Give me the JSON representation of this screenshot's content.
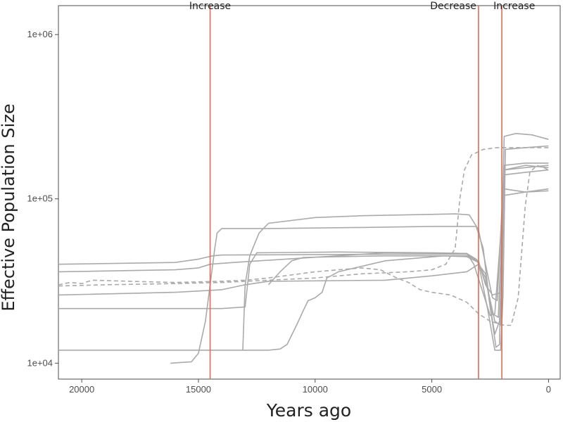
{
  "chart_data": {
    "type": "line",
    "title": "",
    "xlabel": "Years ago",
    "ylabel": "Effective Population Size",
    "x_reversed": true,
    "y_scale": "log10",
    "xlim": [
      21000,
      -500
    ],
    "ylim": [
      8000,
      1500000
    ],
    "grid": false,
    "xticks": [
      {
        "value": 20000,
        "label": "20000"
      },
      {
        "value": 15000,
        "label": "15000"
      },
      {
        "value": 10000,
        "label": "10000"
      },
      {
        "value": 5000,
        "label": "5000"
      },
      {
        "value": 0,
        "label": "0"
      }
    ],
    "yticks": [
      {
        "value": 10000,
        "label": "1e+04"
      },
      {
        "value": 100000,
        "label": "1e+05"
      },
      {
        "value": 1000000,
        "label": "1e+06"
      }
    ],
    "events": [
      {
        "x": 14500,
        "label": "Increase"
      },
      {
        "x": 3000,
        "label": "Decrease"
      },
      {
        "x": 2000,
        "label": "Increase"
      }
    ],
    "colors": {
      "series": "#aaaaaa",
      "event_line": "#e06a55",
      "axis": "#4d4d4d"
    },
    "series": [
      {
        "dashed": false,
        "points": [
          [
            21000,
            40000
          ],
          [
            16000,
            41000
          ],
          [
            15000,
            43000
          ],
          [
            14400,
            45000
          ],
          [
            14000,
            45500
          ],
          [
            7000,
            46000
          ],
          [
            3500,
            46000
          ],
          [
            3000,
            41000
          ],
          [
            2600,
            21000
          ],
          [
            2300,
            12000
          ],
          [
            2050,
            12000
          ],
          [
            1950,
            26000
          ],
          [
            1850,
            200000
          ],
          [
            1000,
            205000
          ],
          [
            0,
            210000
          ]
        ]
      },
      {
        "dashed": false,
        "points": [
          [
            21000,
            36000
          ],
          [
            16000,
            37000
          ],
          [
            15000,
            38000
          ],
          [
            14500,
            40000
          ],
          [
            13500,
            41000
          ],
          [
            7000,
            47000
          ],
          [
            3500,
            46500
          ],
          [
            3100,
            43000
          ],
          [
            2700,
            33000
          ],
          [
            2400,
            20000
          ],
          [
            2150,
            19000
          ],
          [
            1900,
            150000
          ],
          [
            1000,
            155000
          ],
          [
            0,
            160000
          ]
        ]
      },
      {
        "dashed": false,
        "points": [
          [
            21000,
            26000
          ],
          [
            16000,
            27000
          ],
          [
            14000,
            28000
          ],
          [
            13000,
            30000
          ],
          [
            12000,
            31500
          ],
          [
            7000,
            32000
          ],
          [
            5000,
            34000
          ],
          [
            3500,
            36000
          ],
          [
            3000,
            40000
          ],
          [
            2700,
            35000
          ],
          [
            2500,
            22000
          ],
          [
            2250,
            12500
          ],
          [
            2100,
            13000
          ],
          [
            1900,
            240000
          ],
          [
            1400,
            250000
          ],
          [
            700,
            245000
          ],
          [
            0,
            230000
          ]
        ]
      },
      {
        "dashed": false,
        "points": [
          [
            21000,
            21500
          ],
          [
            16000,
            21500
          ],
          [
            14000,
            21500
          ],
          [
            13000,
            22000
          ],
          [
            12800,
            40000
          ],
          [
            12500,
            47000
          ],
          [
            9000,
            47500
          ],
          [
            5000,
            47000
          ],
          [
            3500,
            46500
          ],
          [
            3200,
            40000
          ],
          [
            2700,
            24000
          ],
          [
            2500,
            19500
          ],
          [
            2300,
            20000
          ],
          [
            1900,
            115000
          ],
          [
            1000,
            110000
          ],
          [
            0,
            112000
          ]
        ]
      },
      {
        "dashed": false,
        "points": [
          [
            21000,
            12000
          ],
          [
            16000,
            12000
          ],
          [
            13000,
            12000
          ],
          [
            12000,
            12000
          ],
          [
            11500,
            12200
          ],
          [
            11200,
            13000
          ],
          [
            10800,
            17000
          ],
          [
            10500,
            21000
          ],
          [
            10300,
            24000
          ],
          [
            10000,
            25000
          ],
          [
            9700,
            27000
          ],
          [
            9500,
            33000
          ],
          [
            9000,
            36000
          ],
          [
            7000,
            42000
          ],
          [
            4500,
            45000
          ],
          [
            3500,
            44500
          ],
          [
            3000,
            41000
          ],
          [
            2600,
            28000
          ],
          [
            2300,
            18000
          ],
          [
            2050,
            17000
          ],
          [
            1900,
            140000
          ],
          [
            1000,
            145000
          ],
          [
            0,
            150000
          ]
        ]
      },
      {
        "dashed": false,
        "points": [
          [
            16200,
            10000
          ],
          [
            15300,
            10200
          ],
          [
            15000,
            11500
          ],
          [
            14700,
            18000
          ],
          [
            14500,
            30000
          ],
          [
            14300,
            50000
          ],
          [
            14200,
            62000
          ],
          [
            14000,
            66000
          ],
          [
            12000,
            66000
          ],
          [
            8000,
            67000
          ],
          [
            5000,
            68000
          ],
          [
            3500,
            68000
          ],
          [
            3100,
            68000
          ],
          [
            2800,
            50000
          ],
          [
            2500,
            22000
          ],
          [
            2300,
            15000
          ],
          [
            2100,
            18000
          ],
          [
            1900,
            105000
          ],
          [
            1000,
            110000
          ],
          [
            0,
            115000
          ]
        ]
      },
      {
        "dashed": false,
        "points": [
          [
            13100,
            12000
          ],
          [
            13000,
            30000
          ],
          [
            12800,
            45000
          ],
          [
            12600,
            53000
          ],
          [
            12400,
            62000
          ],
          [
            12000,
            71000
          ],
          [
            10000,
            77000
          ],
          [
            8000,
            79000
          ],
          [
            6000,
            80000
          ],
          [
            4000,
            81000
          ],
          [
            3400,
            80000
          ],
          [
            3000,
            65000
          ],
          [
            2700,
            40000
          ],
          [
            2400,
            25000
          ],
          [
            2200,
            24000
          ],
          [
            1900,
            160000
          ],
          [
            1000,
            165000
          ],
          [
            0,
            165000
          ]
        ]
      },
      {
        "dashed": false,
        "points": [
          [
            12000,
            30000
          ],
          [
            11500,
            36000
          ],
          [
            11000,
            42000
          ],
          [
            10500,
            44000
          ],
          [
            9000,
            44500
          ],
          [
            7000,
            45000
          ],
          [
            5000,
            45000
          ],
          [
            3500,
            45000
          ],
          [
            3000,
            42000
          ],
          [
            2700,
            30000
          ],
          [
            2400,
            26000
          ],
          [
            2200,
            26500
          ],
          [
            2000,
            27000
          ],
          [
            1900,
            150000
          ],
          [
            1000,
            160000
          ],
          [
            0,
            155000
          ]
        ]
      },
      {
        "dashed": true,
        "points": [
          [
            21000,
            30000
          ],
          [
            20500,
            31000
          ],
          [
            20000,
            30500
          ],
          [
            19700,
            31500
          ],
          [
            19500,
            32000
          ],
          [
            18000,
            31500
          ],
          [
            16000,
            31000
          ],
          [
            14000,
            31500
          ],
          [
            13000,
            32000
          ],
          [
            12000,
            33000
          ],
          [
            10000,
            36000
          ],
          [
            9000,
            37000
          ],
          [
            8000,
            38000
          ],
          [
            7200,
            37000
          ],
          [
            6500,
            33000
          ],
          [
            6000,
            31000
          ],
          [
            5500,
            28000
          ],
          [
            5000,
            27000
          ],
          [
            4200,
            26000
          ],
          [
            3500,
            23500
          ],
          [
            3000,
            20000
          ],
          [
            2500,
            18000
          ],
          [
            1900,
            17000
          ],
          [
            1600,
            17000
          ],
          [
            1300,
            25000
          ],
          [
            1000,
            90000
          ],
          [
            800,
            145000
          ],
          [
            500,
            160000
          ],
          [
            200,
            155000
          ],
          [
            0,
            150000
          ]
        ]
      },
      {
        "dashed": true,
        "points": [
          [
            21000,
            29500
          ],
          [
            19000,
            30000
          ],
          [
            16000,
            30500
          ],
          [
            14000,
            31000
          ],
          [
            12000,
            32000
          ],
          [
            10000,
            33000
          ],
          [
            8000,
            35000
          ],
          [
            6000,
            36000
          ],
          [
            5000,
            37000
          ],
          [
            4400,
            40000
          ],
          [
            4000,
            50000
          ],
          [
            3800,
            100000
          ],
          [
            3600,
            150000
          ],
          [
            3300,
            185000
          ],
          [
            2800,
            200000
          ],
          [
            2200,
            205000
          ],
          [
            1500,
            205000
          ],
          [
            800,
            205000
          ],
          [
            0,
            205000
          ]
        ]
      }
    ]
  }
}
